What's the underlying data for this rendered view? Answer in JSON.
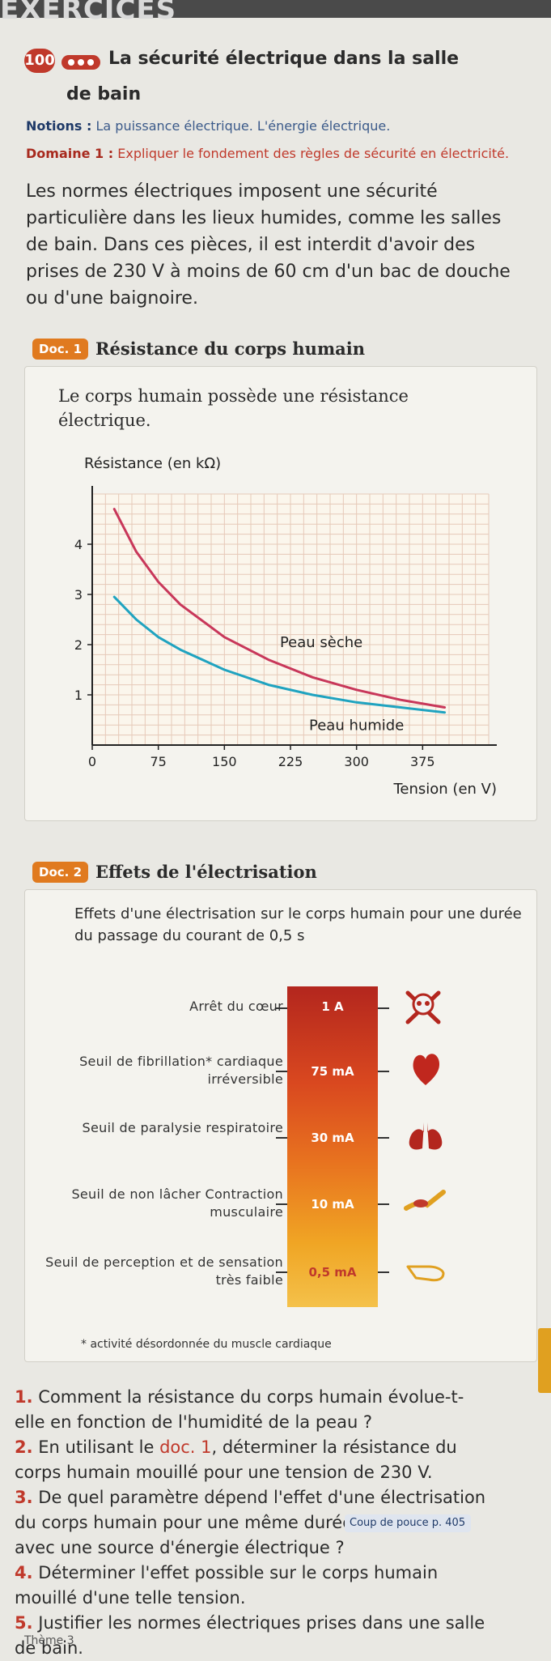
{
  "header": {
    "band_text": "EXERCICES"
  },
  "exercise": {
    "number": "100",
    "title_line1": "La sécurité électrique dans la salle",
    "title_line2": "de bain",
    "notions_label": "Notions :",
    "notions_text": "La puissance électrique. L'énergie électrique.",
    "domaine_label": "Domaine 1 :",
    "domaine_text": "Expliquer le fondement des règles de sécurité en électricité.",
    "intro": "Les normes électriques imposent une sécurité particulière dans les lieux humides, comme les salles de bain. Dans ces pièces, il est interdit d'avoir des prises de 230 V à moins de 60 cm d'un bac de douche ou d'une baignoire."
  },
  "doc1": {
    "tag": "Doc. 1",
    "title": "Résistance du corps humain",
    "text": "Le corps humain possède une résistance électrique."
  },
  "chart_data": {
    "type": "line",
    "ylabel": "Résistance (en kΩ)",
    "xlabel": "Tension (en V)",
    "xlim": [
      0,
      450
    ],
    "ylim": [
      0,
      5
    ],
    "x_ticks": [
      0,
      75,
      150,
      225,
      300,
      375
    ],
    "y_ticks": [
      1,
      2,
      3,
      4
    ],
    "grid": true,
    "series": [
      {
        "name": "Peau sèche",
        "color": "#c8375a",
        "x": [
          25,
          50,
          75,
          100,
          150,
          200,
          250,
          300,
          350,
          400
        ],
        "y": [
          4.7,
          3.85,
          3.25,
          2.8,
          2.15,
          1.7,
          1.35,
          1.1,
          0.9,
          0.75
        ]
      },
      {
        "name": "Peau humide",
        "color": "#1fa3c0",
        "x": [
          25,
          50,
          75,
          100,
          150,
          200,
          250,
          300,
          350,
          400
        ],
        "y": [
          2.95,
          2.5,
          2.15,
          1.9,
          1.5,
          1.2,
          1.0,
          0.85,
          0.75,
          0.65
        ]
      }
    ]
  },
  "doc2": {
    "tag": "Doc. 2",
    "title": "Effets de l'électrisation",
    "intro": "Effets d'une électrisation sur le corps humain pour une durée du passage du courant de 0,5 s",
    "levels": [
      {
        "label": "Arrêt du cœur",
        "value": "1 A",
        "icon": "skull-crossbones-icon"
      },
      {
        "label": "Seuil de fibrillation* cardiaque irréversible",
        "value": "75 mA",
        "icon": "heart-icon"
      },
      {
        "label": "Seuil de paralysie respiratoire",
        "value": "30 mA",
        "icon": "lungs-icon"
      },
      {
        "label": "Seuil de non lâcher Contraction musculaire",
        "value": "10 mA",
        "icon": "arm-muscle-icon"
      },
      {
        "label": "Seuil de perception et de sensation très faible",
        "value": "0,5 mA",
        "icon": "pointing-hand-icon"
      }
    ],
    "footnote": "* activité désordonnée du muscle cardiaque"
  },
  "questions": [
    {
      "num": "1.",
      "text": "Comment la résistance du corps humain évolue-t-elle en fonction de l'humidité de la peau ?"
    },
    {
      "num": "2.",
      "text_before": "En utilisant le",
      "link": "doc. 1",
      "text_after": ", déterminer la résistance du corps humain mouillé pour une tension de 230 V."
    },
    {
      "num": "3.",
      "text": "De quel paramètre dépend l'effet d'une électrisation du corps humain pour une même durée de contact avec une source d'énergie électrique ?"
    },
    {
      "num": "4.",
      "text": "Déterminer l'effet possible sur le corps humain mouillé d'une telle tension."
    },
    {
      "num": "5.",
      "text": "Justifier les normes électriques prises dans une salle de bain."
    }
  ],
  "coup_de_pouce": "Coup de pouce p. 405",
  "footer": {
    "theme": "Thème 3"
  }
}
